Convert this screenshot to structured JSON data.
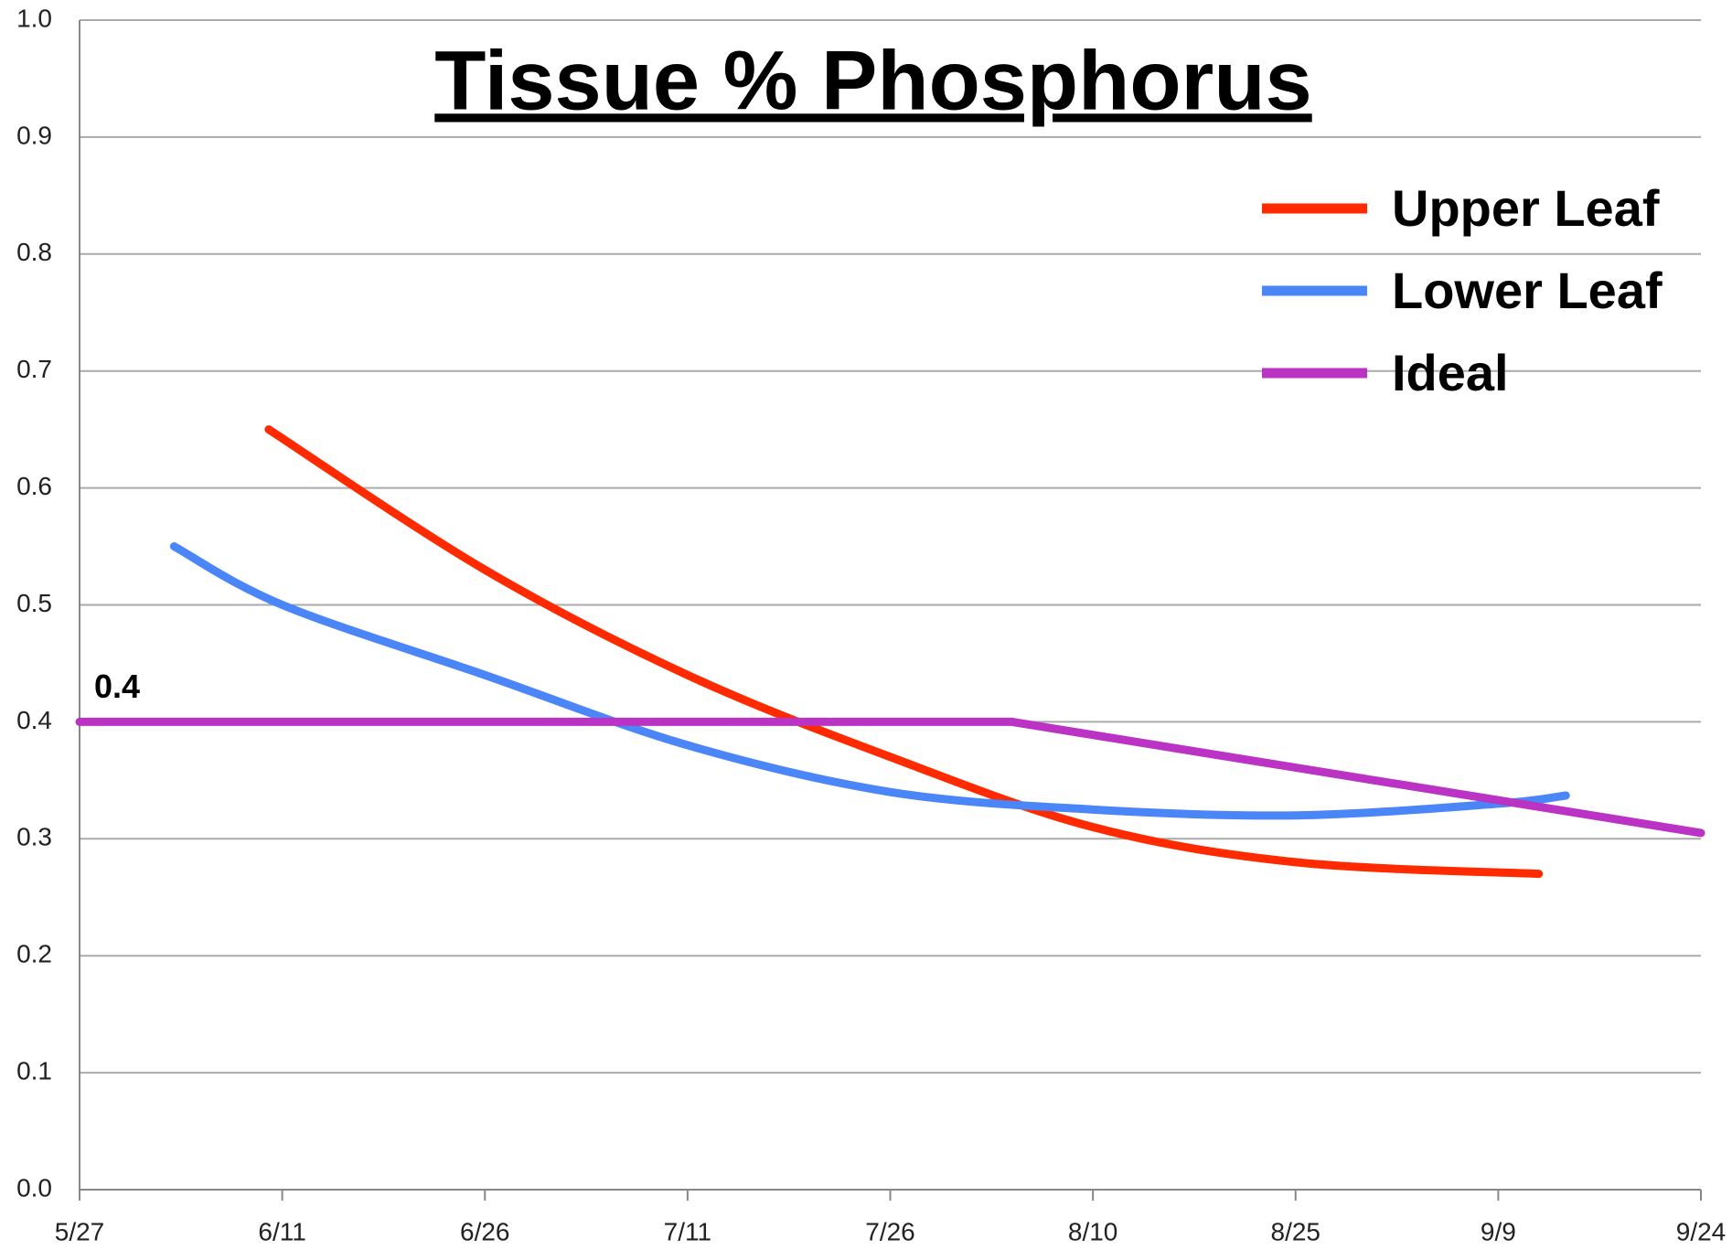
{
  "chart_data": {
    "type": "line",
    "title": "Tissue % Phosphorus",
    "xlim": [
      0,
      120
    ],
    "xticks": [
      {
        "value": 0,
        "label": "5/27"
      },
      {
        "value": 15,
        "label": "6/11"
      },
      {
        "value": 30,
        "label": "6/26"
      },
      {
        "value": 45,
        "label": "7/11"
      },
      {
        "value": 60,
        "label": "7/26"
      },
      {
        "value": 75,
        "label": "8/10"
      },
      {
        "value": 90,
        "label": "8/25"
      },
      {
        "value": 105,
        "label": "9/9"
      },
      {
        "value": 120,
        "label": "9/24"
      }
    ],
    "ylim": [
      0,
      1
    ],
    "yticks": [
      {
        "value": 0,
        "label": "0.0"
      },
      0.1,
      0.2,
      0.3,
      0.4,
      0.5,
      0.6,
      0.7,
      0.8,
      0.9,
      {
        "value": 1,
        "label": "1.0"
      }
    ],
    "grid": true,
    "legend": "upper right",
    "series": [
      {
        "name": "Upper Leaf",
        "color": "#ff2a00",
        "smooth": true,
        "x": [
          14,
          30,
          45,
          60,
          75,
          90,
          108
        ],
        "values": [
          0.65,
          0.53,
          0.44,
          0.37,
          0.31,
          0.28,
          0.27
        ]
      },
      {
        "name": "Lower Leaf",
        "color": "#4a86f7",
        "smooth": true,
        "x": [
          7,
          15,
          30,
          45,
          60,
          75,
          90,
          105,
          110
        ],
        "values": [
          0.55,
          0.5,
          0.44,
          0.38,
          0.34,
          0.325,
          0.32,
          0.33,
          0.337
        ]
      },
      {
        "name": "Ideal",
        "color": "#bb33c4",
        "smooth": false,
        "x": [
          0,
          69,
          120
        ],
        "values": [
          0.4,
          0.4,
          0.305
        ]
      }
    ],
    "annotations": [
      {
        "text": "0.4",
        "x": 0,
        "y": 0.4
      }
    ]
  }
}
